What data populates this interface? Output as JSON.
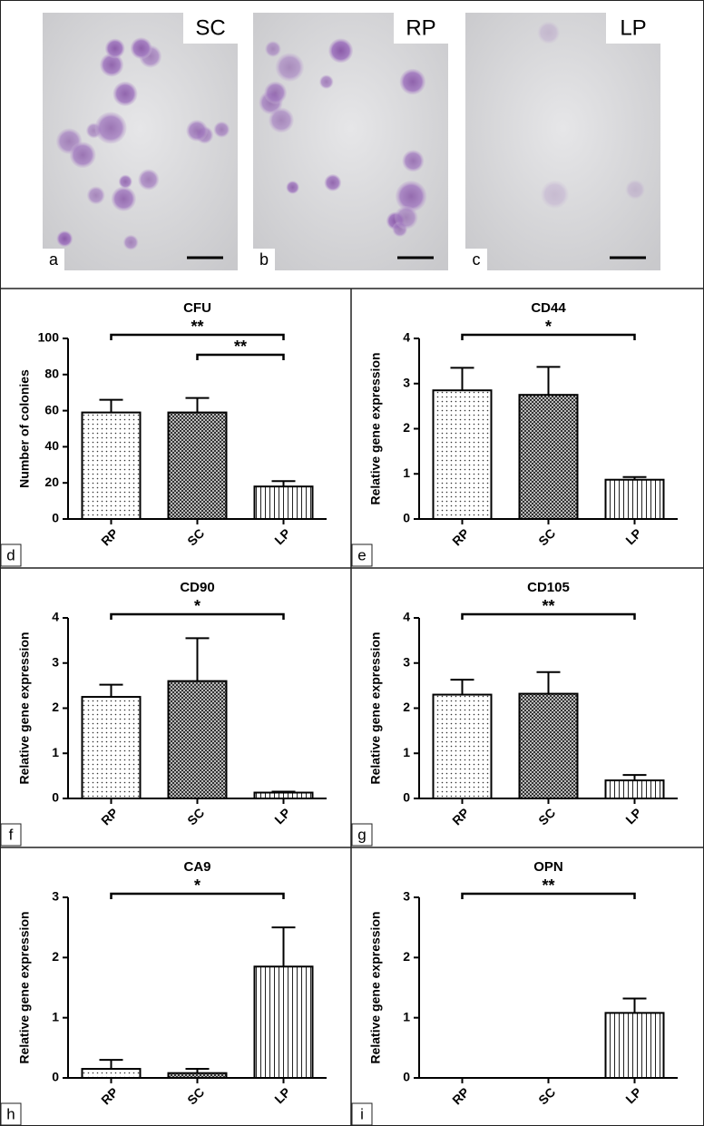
{
  "photos": [
    {
      "letter": "a",
      "label": "SC"
    },
    {
      "letter": "b",
      "label": "RP"
    },
    {
      "letter": "c",
      "label": "LP"
    }
  ],
  "chart_data": [
    {
      "type": "bar",
      "panel": "d",
      "title": "CFU",
      "y_label": "Number of colonies",
      "categories": [
        "RP",
        "SC",
        "LP"
      ],
      "values": [
        59,
        59,
        18
      ],
      "errors": [
        7,
        8,
        3
      ],
      "patterns": [
        "dots",
        "checker",
        "vlines"
      ],
      "ylim": [
        0,
        100
      ],
      "yticks": [
        0,
        20,
        40,
        60,
        80,
        100
      ],
      "significance": [
        {
          "text": "**",
          "between": [
            "RP",
            "LP"
          ]
        },
        {
          "text": "**",
          "between": [
            "SC",
            "LP"
          ]
        }
      ]
    },
    {
      "type": "bar",
      "panel": "e",
      "title": "CD44",
      "y_label": "Relative gene expression",
      "categories": [
        "RP",
        "SC",
        "LP"
      ],
      "values": [
        2.85,
        2.75,
        0.87
      ],
      "errors": [
        0.5,
        0.62,
        0.06
      ],
      "patterns": [
        "dots",
        "checker",
        "vlines"
      ],
      "ylim": [
        0,
        4
      ],
      "yticks": [
        0,
        1,
        2,
        3,
        4
      ],
      "significance": [
        {
          "text": "*",
          "between": [
            "RP",
            "LP"
          ]
        }
      ]
    },
    {
      "type": "bar",
      "panel": "f",
      "title": "CD90",
      "y_label": "Relative gene expression",
      "categories": [
        "RP",
        "SC",
        "LP"
      ],
      "values": [
        2.25,
        2.6,
        0.13
      ],
      "errors": [
        0.27,
        0.95,
        0.02
      ],
      "patterns": [
        "dots",
        "checker",
        "vlines"
      ],
      "ylim": [
        0,
        4
      ],
      "yticks": [
        0,
        1,
        2,
        3,
        4
      ],
      "significance": [
        {
          "text": "*",
          "between": [
            "RP",
            "LP"
          ]
        }
      ]
    },
    {
      "type": "bar",
      "panel": "g",
      "title": "CD105",
      "y_label": "Relative gene expression",
      "categories": [
        "RP",
        "SC",
        "LP"
      ],
      "values": [
        2.3,
        2.32,
        0.4
      ],
      "errors": [
        0.33,
        0.48,
        0.12
      ],
      "patterns": [
        "dots",
        "checker",
        "vlines"
      ],
      "ylim": [
        0,
        4
      ],
      "yticks": [
        0,
        1,
        2,
        3,
        4
      ],
      "significance": [
        {
          "text": "**",
          "between": [
            "RP",
            "LP"
          ]
        }
      ]
    },
    {
      "type": "bar",
      "panel": "h",
      "title": "CA9",
      "y_label": "Relative gene expression",
      "categories": [
        "RP",
        "SC",
        "LP"
      ],
      "values": [
        0.15,
        0.08,
        1.85
      ],
      "errors": [
        0.15,
        0.07,
        0.65
      ],
      "patterns": [
        "dots",
        "checker",
        "vlines"
      ],
      "ylim": [
        0,
        3
      ],
      "yticks": [
        0,
        1,
        2,
        3
      ],
      "significance": [
        {
          "text": "*",
          "between": [
            "RP",
            "LP"
          ]
        }
      ]
    },
    {
      "type": "bar",
      "panel": "i",
      "title": "OPN",
      "y_label": "Relative gene expression",
      "categories": [
        "RP",
        "SC",
        "LP"
      ],
      "values": [
        0,
        0,
        1.08
      ],
      "errors": [
        0,
        0,
        0.24
      ],
      "patterns": [
        "dots",
        "checker",
        "vlines"
      ],
      "ylim": [
        0,
        3
      ],
      "yticks": [
        0,
        1,
        2,
        3
      ],
      "significance": [
        {
          "text": "**",
          "between": [
            "RP",
            "LP"
          ]
        }
      ]
    }
  ]
}
